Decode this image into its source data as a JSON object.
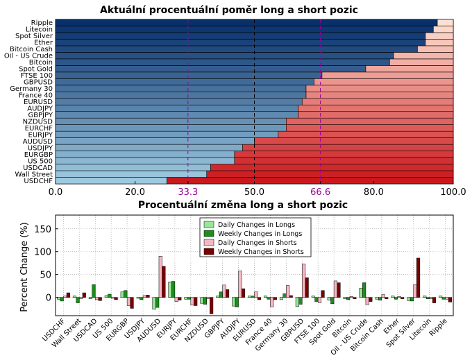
{
  "chart_data": [
    {
      "type": "bar",
      "orientation": "horizontal",
      "stacked": true,
      "title": "Aktuální procentuální poměr long a short pozic",
      "categories": [
        "USDCHF",
        "Wall Street",
        "USDCAD",
        "US 500",
        "EURGBP",
        "USDJPY",
        "AUDUSD",
        "EURJPY",
        "EURCHF",
        "NZDUSD",
        "GBPJPY",
        "AUDJPY",
        "EURUSD",
        "France 40",
        "Germany 30",
        "GBPUSD",
        "FTSE 100",
        "Spot Gold",
        "Bitcoin",
        "Oil - US Crude",
        "Bitcoin Cash",
        "Ether",
        "Spot Silver",
        "Litecoin",
        "Ripple"
      ],
      "long_pct": [
        28,
        38,
        39,
        45,
        45,
        47,
        50,
        56,
        58,
        58,
        61,
        61,
        62,
        63,
        63,
        65,
        67,
        78,
        84,
        85,
        91,
        93,
        93,
        95,
        96
      ],
      "xlim": [
        0,
        100
      ],
      "xticks": [
        "0.0",
        "20.0",
        "33.3",
        "50.0",
        "66.6",
        "80.0",
        "100.0"
      ],
      "reference_lines": [
        33.3,
        50,
        66.6
      ],
      "colors": {
        "long_dark": "#08306b",
        "long_light": "#9ecae1",
        "short_dark": "#cb181d",
        "short_light": "#fee0d2",
        "ref_line": "#990099"
      }
    },
    {
      "type": "bar",
      "title": "Procentuální změna long a short pozic",
      "ylabel": "Percent Change (%)",
      "ylim": [
        -40,
        180
      ],
      "yticks": [
        0,
        50,
        100,
        150
      ],
      "grid": true,
      "legend": "top-center",
      "categories": [
        "USDCHF",
        "Wall Street",
        "USDCAD",
        "US 500",
        "EURGBP",
        "USDJPY",
        "AUDUSD",
        "EURJPY",
        "EURCHF",
        "NZDUSD",
        "GBPJPY",
        "AUDJPY",
        "EURUSD",
        "France 40",
        "Germany 30",
        "GBPUSD",
        "FTSE 100",
        "Spot Gold",
        "Bitcoin",
        "Oil - US Crude",
        "Bitcoin Cash",
        "Ether",
        "Spot Silver",
        "Litecoin",
        "Ripple"
      ],
      "series": [
        {
          "name": "Daily Changes in Longs",
          "color": "#98e698",
          "values": [
            -4,
            3,
            -3,
            4,
            12,
            -2,
            -26,
            34,
            -4,
            -13,
            3,
            -19,
            3,
            3,
            -5,
            -20,
            3,
            -6,
            -3,
            20,
            -4,
            3,
            -7,
            3,
            3
          ]
        },
        {
          "name": "Weekly Changes in Longs",
          "color": "#1e8c1e",
          "values": [
            -8,
            -12,
            28,
            7,
            15,
            -5,
            -22,
            35,
            -4,
            -15,
            12,
            -21,
            3,
            -4,
            8,
            -15,
            -9,
            -14,
            -5,
            32,
            -6,
            -4,
            -8,
            -3,
            -4
          ]
        },
        {
          "name": "Daily Changes in Shorts",
          "color": "#f4b8c4",
          "values": [
            3,
            -3,
            -5,
            -2,
            -18,
            4,
            90,
            -9,
            -17,
            -3,
            27,
            58,
            12,
            -21,
            26,
            73,
            -12,
            36,
            2,
            -16,
            6,
            2,
            28,
            -3,
            -4
          ]
        },
        {
          "name": "Weekly Changes in Shorts",
          "color": "#7a0000",
          "values": [
            10,
            10,
            -7,
            -5,
            -24,
            5,
            68,
            -6,
            -18,
            -36,
            17,
            19,
            -5,
            -5,
            4,
            43,
            15,
            32,
            -3,
            -9,
            -3,
            -3,
            86,
            -12,
            -10
          ]
        }
      ]
    }
  ]
}
